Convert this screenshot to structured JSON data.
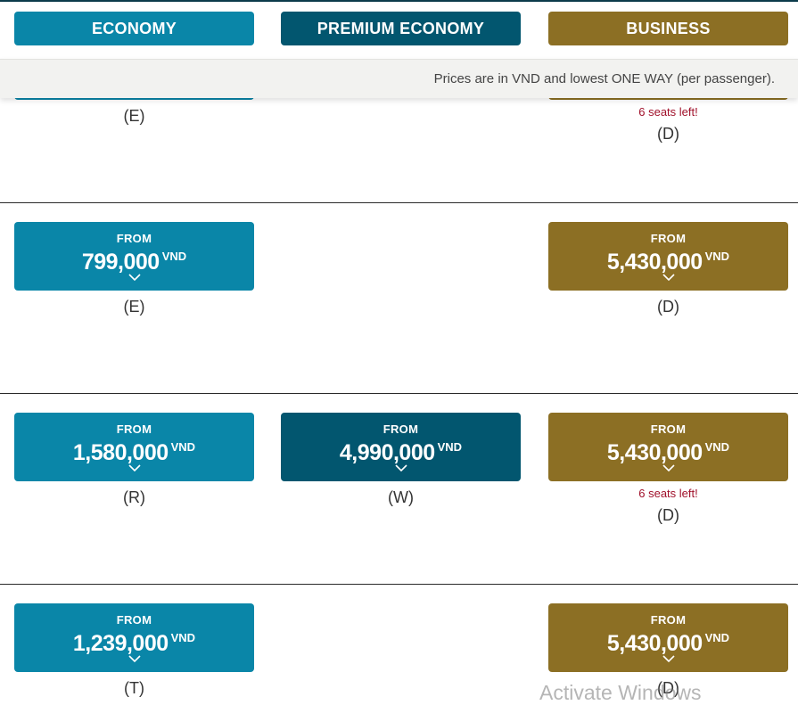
{
  "tabs": {
    "economy": "ECONOMY",
    "premium": "PREMIUM ECONOMY",
    "business": "BUSINESS"
  },
  "notice": "Prices are in VND and lowest ONE WAY (per passenger).",
  "colors": {
    "economy": "#0a86a8",
    "premium_economy": "#02566f",
    "business": "#8c6f24",
    "seats_warning": "#a0102a"
  },
  "rows": [
    {
      "economy_class": "(E)",
      "business_seats": "6 seats left!",
      "business_class": "(D)"
    },
    {
      "economy": {
        "from": "FROM",
        "price": "799,000",
        "currency": "VND",
        "class": "(E)"
      },
      "business": {
        "from": "FROM",
        "price": "5,430,000",
        "currency": "VND",
        "class": "(D)"
      }
    },
    {
      "economy": {
        "from": "FROM",
        "price": "1,580,000",
        "currency": "VND",
        "class": "(R)"
      },
      "premium": {
        "from": "FROM",
        "price": "4,990,000",
        "currency": "VND",
        "class": "(W)"
      },
      "business": {
        "from": "FROM",
        "price": "5,430,000",
        "currency": "VND",
        "class": "(D)",
        "seats": "6 seats left!"
      }
    },
    {
      "economy": {
        "from": "FROM",
        "price": "1,239,000",
        "currency": "VND",
        "class": "(T)"
      },
      "business": {
        "from": "FROM",
        "price": "5,430,000",
        "currency": "VND",
        "class": "(D)"
      }
    }
  ],
  "watermark": "Activate Windows"
}
